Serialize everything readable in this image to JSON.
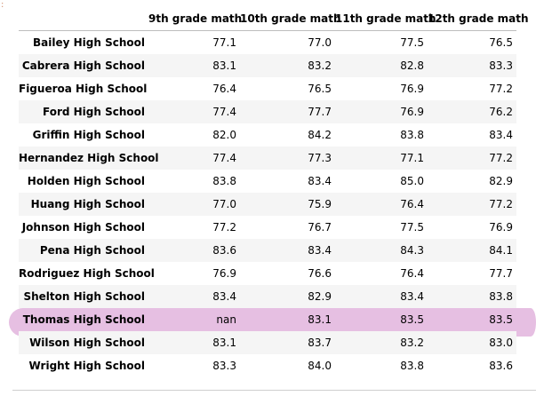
{
  "prompt_mark": ":",
  "table": {
    "columns": [
      "9th grade math",
      "10th grade math",
      "11th grade math",
      "12th grade math"
    ],
    "rows": [
      {
        "school": "Bailey High School",
        "values": [
          "77.1",
          "77.0",
          "77.5",
          "76.5"
        ]
      },
      {
        "school": "Cabrera High School",
        "values": [
          "83.1",
          "83.2",
          "82.8",
          "83.3"
        ]
      },
      {
        "school": "Figueroa High School",
        "values": [
          "76.4",
          "76.5",
          "76.9",
          "77.2"
        ]
      },
      {
        "school": "Ford High School",
        "values": [
          "77.4",
          "77.7",
          "76.9",
          "76.2"
        ]
      },
      {
        "school": "Griffin High School",
        "values": [
          "82.0",
          "84.2",
          "83.8",
          "83.4"
        ]
      },
      {
        "school": "Hernandez High School",
        "values": [
          "77.4",
          "77.3",
          "77.1",
          "77.2"
        ]
      },
      {
        "school": "Holden High School",
        "values": [
          "83.8",
          "83.4",
          "85.0",
          "82.9"
        ]
      },
      {
        "school": "Huang High School",
        "values": [
          "77.0",
          "75.9",
          "76.4",
          "77.2"
        ]
      },
      {
        "school": "Johnson High School",
        "values": [
          "77.2",
          "76.7",
          "77.5",
          "76.9"
        ]
      },
      {
        "school": "Pena High School",
        "values": [
          "83.6",
          "83.4",
          "84.3",
          "84.1"
        ]
      },
      {
        "school": "Rodriguez High School",
        "values": [
          "76.9",
          "76.6",
          "76.4",
          "77.7"
        ]
      },
      {
        "school": "Shelton High School",
        "values": [
          "83.4",
          "82.9",
          "83.4",
          "83.8"
        ]
      },
      {
        "school": "Thomas High School",
        "values": [
          "nan",
          "83.1",
          "83.5",
          "83.5"
        ]
      },
      {
        "school": "Wilson High School",
        "values": [
          "83.1",
          "83.7",
          "83.2",
          "83.0"
        ]
      },
      {
        "school": "Wright High School",
        "values": [
          "83.3",
          "84.0",
          "83.8",
          "83.6"
        ]
      }
    ],
    "highlighted_row": 12
  },
  "colors": {
    "stripe": "#f5f5f5",
    "highlight": "#e6bfe2",
    "prompt_mark": "#d18f6e"
  }
}
